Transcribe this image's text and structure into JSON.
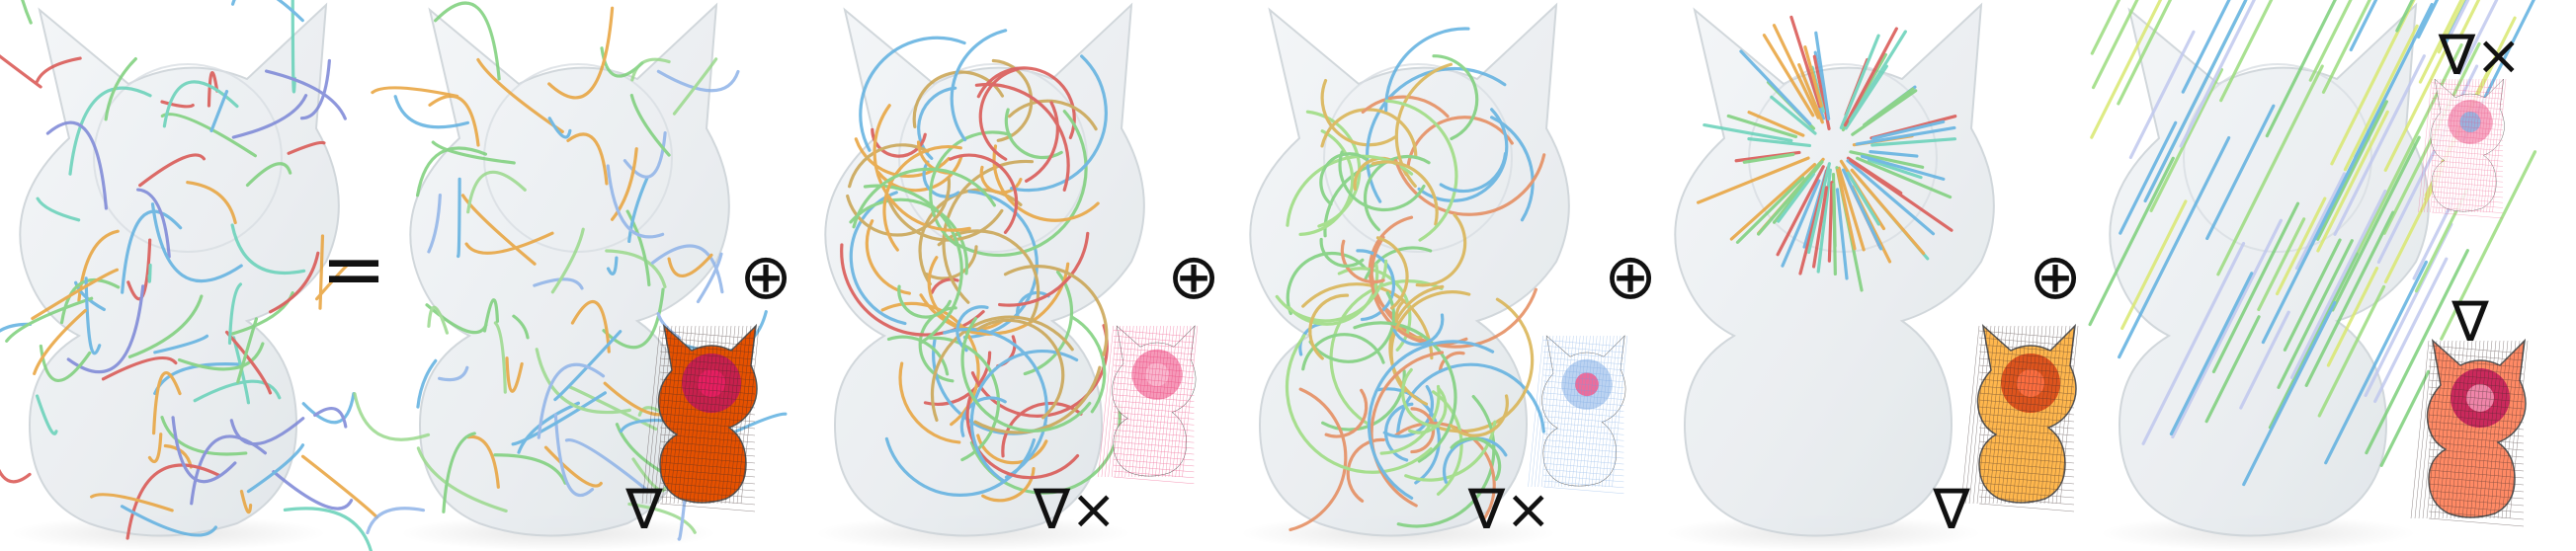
{
  "symbols": {
    "equals": "=",
    "oplus": "⊕",
    "grad": "∇",
    "curl": "∇×"
  },
  "panels": [
    {
      "id": "original-field",
      "palette": [
        "#d9534f",
        "#e8a23a",
        "#7ccf7a",
        "#5fb0e0",
        "#7b86d6",
        "#66d1b8"
      ]
    },
    {
      "id": "harmonic-like-component",
      "palette": [
        "#7ccf7a",
        "#5fb0e0",
        "#8fb3e8",
        "#e8a23a",
        "#9ad98c"
      ]
    },
    {
      "id": "vortex-component",
      "palette": [
        "#d9534f",
        "#e8a23a",
        "#7ccf7a",
        "#5fb0e0",
        "#c9a34f"
      ]
    },
    {
      "id": "rotational-component",
      "palette": [
        "#e58a5b",
        "#7ccf7a",
        "#5fb0e0",
        "#9bdc7e",
        "#d9b24f"
      ]
    },
    {
      "id": "radial-component",
      "palette": [
        "#d9534f",
        "#e8a23a",
        "#7ccf7a",
        "#5fb0e0",
        "#66d1b8"
      ]
    },
    {
      "id": "constant-component",
      "palette": [
        "#7ccf7a",
        "#9bdc7e",
        "#5fb0e0",
        "#c0c8ee",
        "#d9e870"
      ]
    }
  ],
  "insets": [
    {
      "id": "potential-1",
      "operator": "grad",
      "colors": [
        "#c2185b",
        "#e91e63",
        "#f5d0dc",
        "#e65100",
        "#f57c00"
      ]
    },
    {
      "id": "curl-potential-1",
      "operator": "curl",
      "colors": [
        "#e91e63",
        "#f8bbd0",
        "#90b4e0",
        "#ffffff"
      ]
    },
    {
      "id": "curl-potential-2",
      "operator": "curl",
      "colors": [
        "#6a9ee0",
        "#f06292",
        "#ffffff"
      ]
    },
    {
      "id": "potential-2",
      "operator": "grad",
      "colors": [
        "#d84315",
        "#ff7043",
        "#c2185b",
        "#ffb74d"
      ]
    },
    {
      "id": "curl-potential-3",
      "operator": "curl",
      "colors": [
        "#ec407a",
        "#90b4e0",
        "#ffffff"
      ]
    },
    {
      "id": "potential-3",
      "operator": "grad",
      "colors": [
        "#c2185b",
        "#f48fb1",
        "#e65100",
        "#ff8a65"
      ]
    }
  ]
}
